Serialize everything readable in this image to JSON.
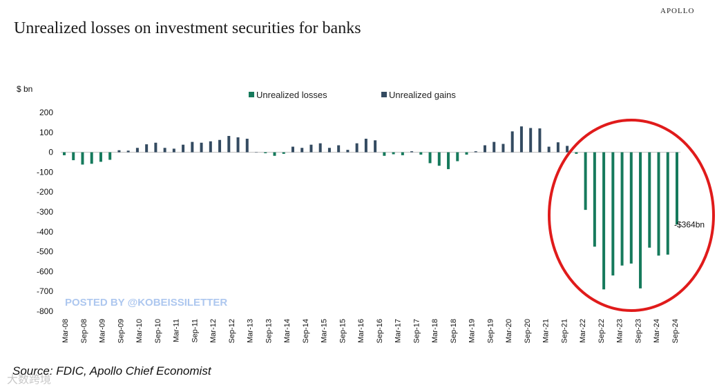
{
  "header": {
    "brand": "APOLLO",
    "title": "Unrealized losses on investment securities for banks"
  },
  "footer": {
    "source": "Source: FDIC, Apollo Chief Economist",
    "watermark_cn": "大数跨境"
  },
  "colors": {
    "loss": "#167a5c",
    "gain": "#344b61",
    "circle": "#e01b1b",
    "watermark": "#adc7ef"
  },
  "chart_data": {
    "type": "bar",
    "title": "Unrealized losses on investment securities for banks",
    "ylabel": "$ bn",
    "xlabel": "",
    "ylim": [
      -800,
      200
    ],
    "yticks": [
      200,
      100,
      0,
      -100,
      -200,
      -300,
      -400,
      -500,
      -600,
      -700,
      -800
    ],
    "grid": false,
    "legend_position": "top-center",
    "series": [
      {
        "name": "Unrealized losses",
        "color": "#167a5c"
      },
      {
        "name": "Unrealized gains",
        "color": "#344b61"
      }
    ],
    "xtick_labels": [
      "Mar-08",
      "Sep-08",
      "Mar-09",
      "Sep-09",
      "Mar-10",
      "Sep-10",
      "Mar-11",
      "Sep-11",
      "Mar-12",
      "Sep-12",
      "Mar-13",
      "Sep-13",
      "Mar-14",
      "Sep-14",
      "Mar-15",
      "Sep-15",
      "Mar-16",
      "Sep-16",
      "Mar-17",
      "Sep-17",
      "Mar-18",
      "Sep-18",
      "Mar-19",
      "Sep-19",
      "Mar-20",
      "Sep-20",
      "Mar-21",
      "Sep-21",
      "Mar-22",
      "Sep-22",
      "Mar-23",
      "Sep-23",
      "Mar-24",
      "Sep-24"
    ],
    "values": [
      -15,
      -40,
      -62,
      -58,
      -48,
      -38,
      10,
      8,
      22,
      40,
      48,
      22,
      18,
      38,
      52,
      48,
      55,
      62,
      82,
      75,
      68,
      0,
      -5,
      -18,
      -8,
      28,
      22,
      38,
      45,
      22,
      35,
      12,
      45,
      68,
      60,
      -18,
      -10,
      -15,
      5,
      -12,
      -55,
      -68,
      -85,
      -45,
      -12,
      5,
      35,
      52,
      42,
      105,
      130,
      122,
      120,
      28,
      50,
      32,
      -8,
      -290,
      -475,
      -690,
      -620,
      -570,
      -560,
      -685,
      -480,
      -520,
      -515,
      -364
    ],
    "annotations": [
      {
        "text": "-$364bn",
        "target_index": 67
      },
      {
        "text": "POSTED BY @KOBEISSILETTER",
        "type": "watermark"
      },
      {
        "text": "",
        "type": "highlight-circle",
        "target": "Mar-22 to Sep-24"
      }
    ]
  }
}
